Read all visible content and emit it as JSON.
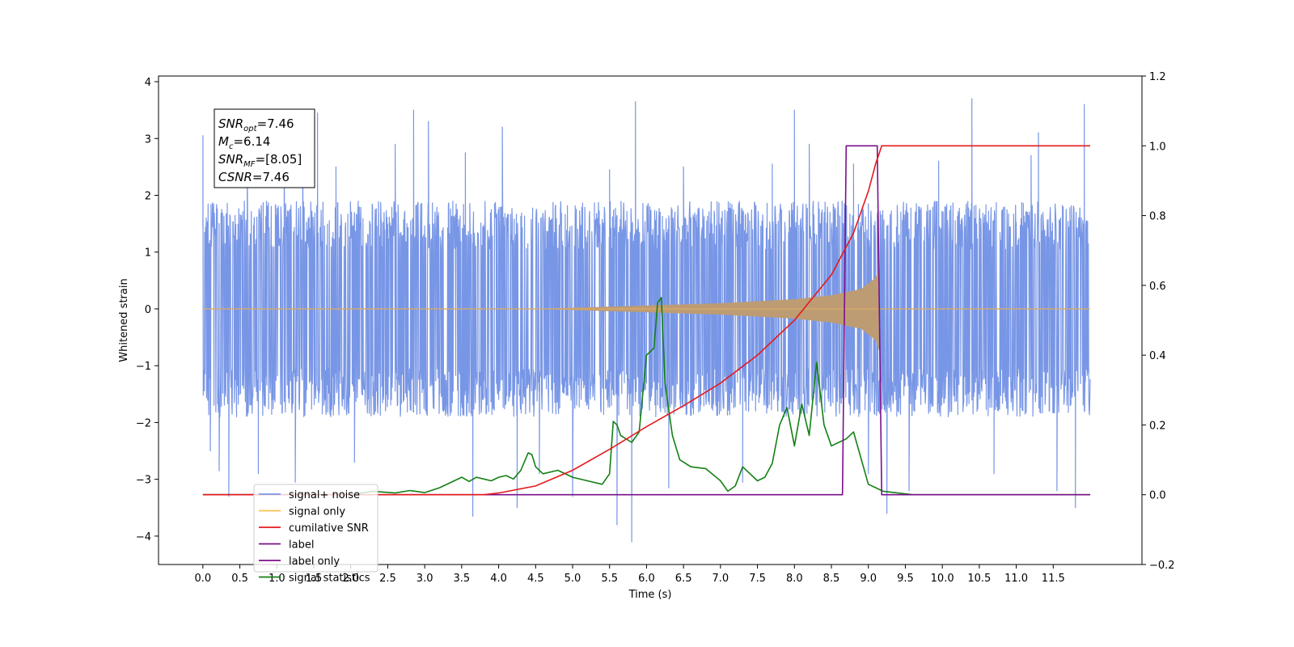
{
  "chart_data": {
    "type": "line",
    "title": "",
    "xlabel": "Time (s)",
    "ylabel": "Whitened strain",
    "xlim": [
      -0.6,
      12.7
    ],
    "ylim_left": [
      -4.5,
      4.1
    ],
    "ylim_right": [
      -0.2,
      1.2
    ],
    "x_ticks": [
      0.0,
      0.5,
      1.0,
      1.5,
      2.0,
      2.5,
      3.0,
      3.5,
      4.0,
      4.5,
      5.0,
      5.5,
      6.0,
      6.5,
      7.0,
      7.5,
      8.0,
      8.5,
      9.0,
      9.5,
      10.0,
      10.5,
      11.0,
      11.5
    ],
    "x_tick_labels": [
      "0.0",
      "0.5",
      "1.0",
      "1.5",
      "2.0",
      "2.5",
      "3.0",
      "3.5",
      "4.0",
      "4.5",
      "5.0",
      "5.5",
      "6.0",
      "6.5",
      "7.0",
      "7.5",
      "8.0",
      "8.5",
      "9.0",
      "9.5",
      "10.0",
      "10.5",
      "11.0",
      "11.5"
    ],
    "y_ticks_left": [
      -4,
      -3,
      -2,
      -1,
      0,
      1,
      2,
      3,
      4
    ],
    "y_tick_labels_left": [
      "−4",
      "−3",
      "−2",
      "−1",
      "0",
      "1",
      "2",
      "3",
      "4"
    ],
    "y_ticks_right": [
      -0.2,
      0.0,
      0.2,
      0.4,
      0.6,
      0.8,
      1.0,
      1.2
    ],
    "y_tick_labels_right": [
      "−0.2",
      "0.0",
      "0.2",
      "0.4",
      "0.6",
      "0.8",
      "1.0",
      "1.2"
    ],
    "grid": false,
    "legend_placement": "lower-left",
    "annotation": {
      "lines": [
        {
          "sym": "SNR",
          "sub": "opt",
          "val": "=7.46"
        },
        {
          "sym": "M",
          "sub": "c",
          "val": "=6.14"
        },
        {
          "sym": "SNR",
          "sub": "MF",
          "val": "=[8.05]"
        },
        {
          "sym": "CSNR",
          "sub": "",
          "val": "=7.46"
        }
      ]
    },
    "series": [
      {
        "name": "signal+ noise",
        "axis": "left",
        "color": "#7896e6",
        "t_range": [
          0.0,
          12.0
        ],
        "envelope_low": -1.9,
        "envelope_high": 1.9,
        "spikes": [
          [
            0.0,
            3.05
          ],
          [
            0.1,
            -2.5
          ],
          [
            0.22,
            -2.85
          ],
          [
            0.35,
            -3.3
          ],
          [
            0.6,
            2.5
          ],
          [
            0.75,
            -2.9
          ],
          [
            1.1,
            2.5
          ],
          [
            1.25,
            -3.05
          ],
          [
            1.35,
            3.3
          ],
          [
            1.55,
            3.45
          ],
          [
            1.8,
            2.5
          ],
          [
            2.05,
            -2.7
          ],
          [
            2.6,
            2.9
          ],
          [
            2.85,
            3.5
          ],
          [
            3.05,
            3.3
          ],
          [
            3.55,
            2.75
          ],
          [
            3.65,
            -3.65
          ],
          [
            4.05,
            3.2
          ],
          [
            4.25,
            -3.5
          ],
          [
            4.55,
            -2.9
          ],
          [
            5.0,
            -3.3
          ],
          [
            5.5,
            2.45
          ],
          [
            5.6,
            -3.8
          ],
          [
            5.8,
            -4.1
          ],
          [
            5.85,
            3.65
          ],
          [
            6.3,
            -3.15
          ],
          [
            6.5,
            2.5
          ],
          [
            7.3,
            -3.05
          ],
          [
            7.7,
            2.55
          ],
          [
            8.0,
            3.5
          ],
          [
            8.2,
            2.9
          ],
          [
            8.8,
            2.55
          ],
          [
            9.0,
            -2.9
          ],
          [
            9.25,
            -3.6
          ],
          [
            9.55,
            -3.2
          ],
          [
            9.95,
            2.6
          ],
          [
            10.4,
            3.7
          ],
          [
            10.7,
            -2.9
          ],
          [
            11.2,
            2.7
          ],
          [
            11.3,
            3.1
          ],
          [
            11.55,
            -3.2
          ],
          [
            11.8,
            -3.5
          ],
          [
            11.92,
            3.6
          ]
        ]
      },
      {
        "name": "signal only",
        "axis": "left",
        "color": "#ffc04d",
        "t_range": [
          0.0,
          12.0
        ],
        "chirp_start": 4.5,
        "chirp_end": 9.15,
        "amplitude_envelope": [
          [
            4.5,
            0.0
          ],
          [
            5.0,
            0.02
          ],
          [
            6.0,
            0.06
          ],
          [
            7.0,
            0.1
          ],
          [
            8.0,
            0.17
          ],
          [
            8.5,
            0.24
          ],
          [
            8.9,
            0.35
          ],
          [
            9.1,
            0.55
          ],
          [
            9.15,
            0.75
          ]
        ]
      },
      {
        "name": "cumilative SNR",
        "axis": "right",
        "color": "#e41a1c",
        "x": [
          0.0,
          3.8,
          4.0,
          4.5,
          5.0,
          5.5,
          6.0,
          6.5,
          7.0,
          7.5,
          8.0,
          8.5,
          8.8,
          9.0,
          9.1,
          9.15,
          9.18,
          12.0
        ],
        "y": [
          0.0,
          0.0,
          0.005,
          0.025,
          0.07,
          0.13,
          0.195,
          0.255,
          0.32,
          0.4,
          0.5,
          0.63,
          0.75,
          0.87,
          0.95,
          0.98,
          1.0,
          1.0
        ]
      },
      {
        "name": "label",
        "axis": "right",
        "color": "#7b0f8b",
        "x": [
          0.0,
          8.65,
          8.7,
          9.12,
          9.18,
          12.0
        ],
        "y": [
          0.0,
          0.0,
          1.0,
          1.0,
          0.0,
          0.0
        ]
      },
      {
        "name": "label only",
        "axis": "right",
        "color": "#7b0f8b",
        "hidden": true,
        "x": [],
        "y": []
      },
      {
        "name": "signal statistics",
        "axis": "right",
        "color": "#138013",
        "x": [
          0.0,
          2.0,
          2.3,
          2.6,
          2.8,
          3.0,
          3.2,
          3.4,
          3.5,
          3.6,
          3.7,
          3.8,
          3.9,
          4.0,
          4.1,
          4.2,
          4.3,
          4.4,
          4.45,
          4.5,
          4.6,
          4.8,
          5.0,
          5.2,
          5.4,
          5.5,
          5.55,
          5.6,
          5.65,
          5.8,
          5.9,
          6.0,
          6.1,
          6.15,
          6.2,
          6.25,
          6.35,
          6.45,
          6.6,
          6.8,
          7.0,
          7.1,
          7.2,
          7.3,
          7.4,
          7.5,
          7.6,
          7.7,
          7.8,
          7.9,
          8.0,
          8.1,
          8.2,
          8.3,
          8.4,
          8.5,
          8.6,
          8.7,
          8.8,
          9.0,
          9.2,
          9.4,
          9.6,
          12.0
        ],
        "y": [
          0.0,
          0.0,
          0.01,
          0.005,
          0.012,
          0.006,
          0.02,
          0.04,
          0.05,
          0.038,
          0.05,
          0.045,
          0.04,
          0.05,
          0.055,
          0.045,
          0.07,
          0.12,
          0.115,
          0.08,
          0.06,
          0.07,
          0.05,
          0.04,
          0.03,
          0.06,
          0.21,
          0.2,
          0.17,
          0.15,
          0.18,
          0.4,
          0.42,
          0.55,
          0.565,
          0.32,
          0.17,
          0.1,
          0.08,
          0.075,
          0.04,
          0.01,
          0.025,
          0.08,
          0.06,
          0.04,
          0.05,
          0.09,
          0.2,
          0.25,
          0.14,
          0.26,
          0.17,
          0.38,
          0.2,
          0.14,
          0.15,
          0.16,
          0.18,
          0.03,
          0.01,
          0.005,
          0.0,
          0.0
        ]
      }
    ]
  }
}
